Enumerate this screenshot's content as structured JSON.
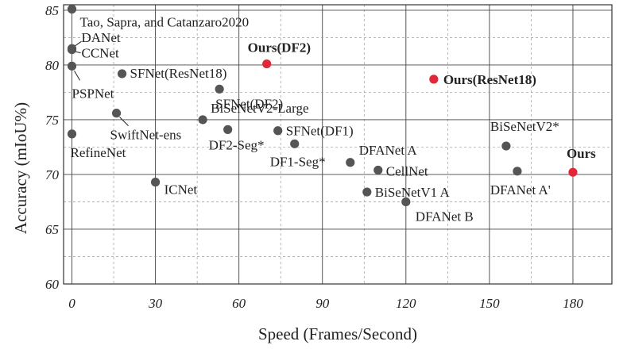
{
  "chart_data": {
    "type": "scatter",
    "xlabel": "Speed (Frames/Second)",
    "ylabel": "Accuracy (mIoU%)",
    "xlim": [
      -3,
      194
    ],
    "ylim": [
      60,
      85.5
    ],
    "xticks": [
      0,
      30,
      60,
      90,
      120,
      150,
      180
    ],
    "yticks": [
      60,
      65,
      70,
      75,
      80,
      85
    ],
    "grid": true,
    "colors": {
      "baseline": "#555555",
      "ours": "#e0283a"
    },
    "points": [
      {
        "label": "Tao, Sapra, and Catanzaro2020",
        "x": 0,
        "y": 85.1,
        "group": "baseline"
      },
      {
        "label": "DANet",
        "x": 0,
        "y": 81.5,
        "group": "baseline"
      },
      {
        "label": "CCNet",
        "x": 0,
        "y": 81.4,
        "group": "baseline"
      },
      {
        "label": "PSPNet",
        "x": 0,
        "y": 79.9,
        "group": "baseline"
      },
      {
        "label": "RefineNet",
        "x": 0,
        "y": 73.7,
        "group": "baseline"
      },
      {
        "label": "SFNet(ResNet18)",
        "x": 18,
        "y": 79.2,
        "group": "baseline"
      },
      {
        "label": "SwiftNet-ens",
        "x": 16,
        "y": 75.6,
        "group": "baseline"
      },
      {
        "label": "ICNet",
        "x": 30,
        "y": 69.3,
        "group": "baseline"
      },
      {
        "label": "BiSeNetV2-Large",
        "x": 47,
        "y": 75.0,
        "group": "baseline"
      },
      {
        "label": "SFNet(DF2)",
        "x": 53,
        "y": 77.8,
        "group": "baseline"
      },
      {
        "label": "DF2-Seg*",
        "x": 56,
        "y": 74.1,
        "group": "baseline"
      },
      {
        "label": "SFNet(DF1)",
        "x": 74,
        "y": 74.0,
        "group": "baseline"
      },
      {
        "label": "DF1-Seg*",
        "x": 80,
        "y": 72.8,
        "group": "baseline"
      },
      {
        "label": "DFANet A",
        "x": 100,
        "y": 71.1,
        "group": "baseline"
      },
      {
        "label": "CellNet",
        "x": 110,
        "y": 70.4,
        "group": "baseline"
      },
      {
        "label": "BiSeNetV1 A",
        "x": 106,
        "y": 68.4,
        "group": "baseline"
      },
      {
        "label": "DFANet B",
        "x": 120,
        "y": 67.5,
        "group": "baseline"
      },
      {
        "label": "BiSeNetV2*",
        "x": 156,
        "y": 72.6,
        "group": "baseline"
      },
      {
        "label": "DFANet A'",
        "x": 160,
        "y": 70.3,
        "group": "baseline"
      },
      {
        "label": "Ours(DF2)",
        "x": 70,
        "y": 80.1,
        "group": "ours"
      },
      {
        "label": "Ours(ResNet18)",
        "x": 130,
        "y": 78.7,
        "group": "ours"
      },
      {
        "label": "Ours",
        "x": 180,
        "y": 70.2,
        "group": "ours"
      }
    ]
  }
}
